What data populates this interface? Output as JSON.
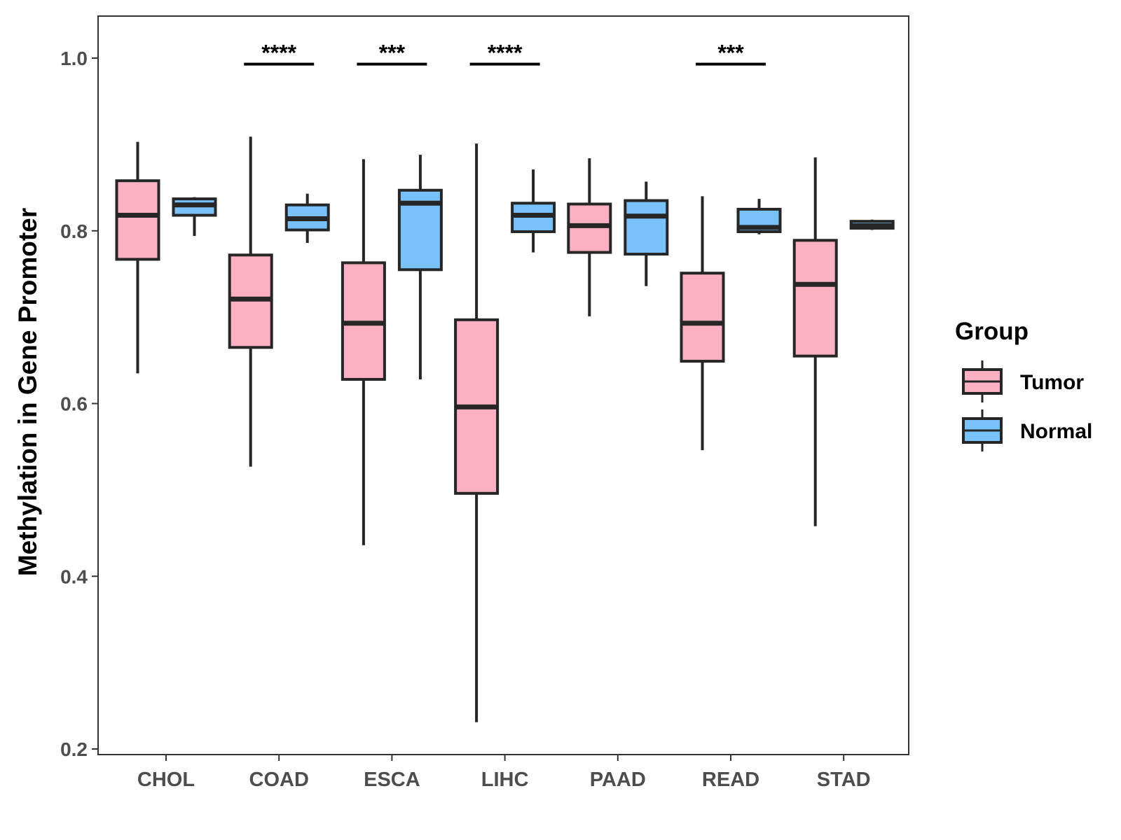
{
  "chart_data": {
    "type": "box",
    "title": "",
    "xlabel": "",
    "ylabel": "Methylation in Gene Promoter",
    "ylim": [
      0.19,
      1.05
    ],
    "yticks": [
      0.2,
      0.4,
      0.6,
      0.8,
      1.0
    ],
    "ytick_labels": [
      "0.2",
      "0.4",
      "0.6",
      "0.8",
      "1.0"
    ],
    "categories": [
      "CHOL",
      "COAD",
      "ESCA",
      "LIHC",
      "PAAD",
      "READ",
      "STAD"
    ],
    "grid": false,
    "legend": {
      "title": "Group",
      "position": "right",
      "entries": [
        {
          "name": "Tumor",
          "color": "#fbb1c3"
        },
        {
          "name": "Normal",
          "color": "#78c1f9"
        }
      ]
    },
    "series": [
      {
        "name": "Tumor",
        "color": "#fbb1c3",
        "boxes": [
          {
            "category": "CHOL",
            "whisker_low": 0.635,
            "q1": 0.767,
            "median": 0.818,
            "q3": 0.858,
            "whisker_high": 0.903
          },
          {
            "category": "COAD",
            "whisker_low": 0.527,
            "q1": 0.665,
            "median": 0.721,
            "q3": 0.772,
            "whisker_high": 0.909
          },
          {
            "category": "ESCA",
            "whisker_low": 0.436,
            "q1": 0.628,
            "median": 0.693,
            "q3": 0.763,
            "whisker_high": 0.883
          },
          {
            "category": "LIHC",
            "whisker_low": 0.231,
            "q1": 0.496,
            "median": 0.596,
            "q3": 0.697,
            "whisker_high": 0.901
          },
          {
            "category": "PAAD",
            "whisker_low": 0.701,
            "q1": 0.775,
            "median": 0.806,
            "q3": 0.831,
            "whisker_high": 0.884
          },
          {
            "category": "READ",
            "whisker_low": 0.546,
            "q1": 0.649,
            "median": 0.693,
            "q3": 0.751,
            "whisker_high": 0.84
          },
          {
            "category": "STAD",
            "whisker_low": 0.458,
            "q1": 0.655,
            "median": 0.738,
            "q3": 0.789,
            "whisker_high": 0.885
          }
        ]
      },
      {
        "name": "Normal",
        "color": "#78c1f9",
        "boxes": [
          {
            "category": "CHOL",
            "whisker_low": 0.794,
            "q1": 0.818,
            "median": 0.83,
            "q3": 0.837,
            "whisker_high": 0.839
          },
          {
            "category": "COAD",
            "whisker_low": 0.786,
            "q1": 0.801,
            "median": 0.814,
            "q3": 0.83,
            "whisker_high": 0.843
          },
          {
            "category": "ESCA",
            "whisker_low": 0.628,
            "q1": 0.755,
            "median": 0.832,
            "q3": 0.847,
            "whisker_high": 0.888
          },
          {
            "category": "LIHC",
            "whisker_low": 0.775,
            "q1": 0.799,
            "median": 0.818,
            "q3": 0.832,
            "whisker_high": 0.871
          },
          {
            "category": "PAAD",
            "whisker_low": 0.736,
            "q1": 0.773,
            "median": 0.817,
            "q3": 0.835,
            "whisker_high": 0.857
          },
          {
            "category": "READ",
            "whisker_low": 0.796,
            "q1": 0.799,
            "median": 0.804,
            "q3": 0.825,
            "whisker_high": 0.837
          },
          {
            "category": "STAD",
            "whisker_low": 0.801,
            "q1": 0.803,
            "median": 0.806,
            "q3": 0.811,
            "whisker_high": 0.813
          }
        ]
      }
    ],
    "annotations": [
      {
        "category": "COAD",
        "label": "****",
        "y": 0.993
      },
      {
        "category": "ESCA",
        "label": "***",
        "y": 0.993
      },
      {
        "category": "LIHC",
        "label": "****",
        "y": 0.993
      },
      {
        "category": "READ",
        "label": "***",
        "y": 0.993
      }
    ]
  }
}
